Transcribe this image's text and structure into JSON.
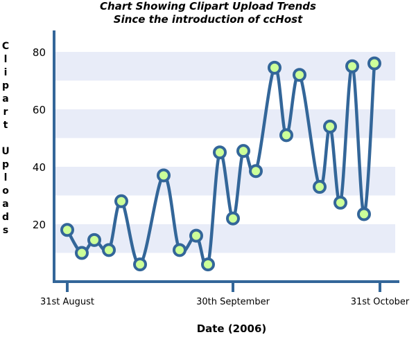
{
  "chart_data": {
    "type": "line",
    "title": "Chart Showing Clipart Upload Trends",
    "subtitle": "Since the introduction of ccHost",
    "xlabel": "Date (2006)",
    "ylabel": "Clipart Uploads",
    "x_tick_labels": [
      "31st August",
      "30th September",
      "31st October"
    ],
    "y_ticks": [
      20,
      40,
      60,
      80
    ],
    "ylim": [
      0,
      85
    ],
    "grid": "alternating horizontal bands",
    "series": [
      {
        "values": [
          18,
          10,
          14.5,
          11,
          28,
          6,
          37,
          11,
          16,
          6,
          45,
          22,
          45.5,
          38.5,
          74.5,
          51,
          72,
          33,
          54,
          27.5,
          75,
          23.5,
          76
        ]
      }
    ],
    "colors": {
      "line": "#336699",
      "marker_fill": "#ccff99",
      "band": "#e8ecf8",
      "axis": "#336699"
    }
  }
}
